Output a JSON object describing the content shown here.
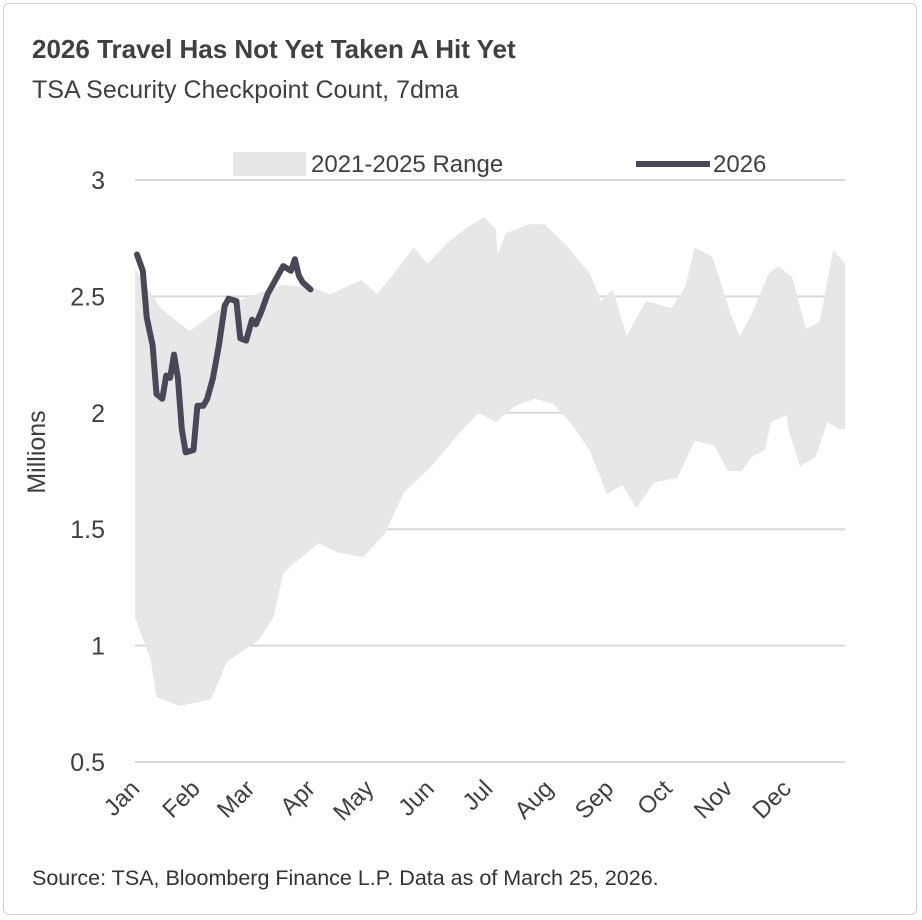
{
  "chart_data": {
    "type": "area",
    "title": "2026 Travel Has Not Yet Taken A Hit Yet",
    "subtitle": "TSA Security Checkpoint Count, 7dma",
    "ylabel": "Millions",
    "xlabel": "",
    "ylim": [
      0.5,
      3
    ],
    "yticks": [
      "0.5",
      "1",
      "1.5",
      "2",
      "2.5",
      "3"
    ],
    "ytick_values": [
      0.5,
      1,
      1.5,
      2,
      2.5,
      3
    ],
    "xticks": [
      "Jan",
      "Feb",
      "Mar",
      "Apr",
      "May",
      "Jun",
      "Jul",
      "Aug",
      "Sep",
      "Oct",
      "Nov",
      "Dec"
    ],
    "grid": "horizontal",
    "legend_position": "top",
    "colors": {
      "range": "#e7e7e7",
      "line": "#4a4759",
      "grid": "#d9d9d9"
    },
    "series": [
      {
        "name": "2021-2025 Range",
        "kind": "band",
        "upper": [
          [
            "01-01",
            2.62
          ],
          [
            "01-14",
            2.45
          ],
          [
            "01-29",
            2.35
          ],
          [
            "02-14",
            2.45
          ],
          [
            "03-01",
            2.5
          ],
          [
            "03-17",
            2.55
          ],
          [
            "04-01",
            2.54
          ],
          [
            "04-11",
            2.51
          ],
          [
            "04-27",
            2.57
          ],
          [
            "05-05",
            2.51
          ],
          [
            "05-12",
            2.58
          ],
          [
            "05-24",
            2.71
          ],
          [
            "05-31",
            2.64
          ],
          [
            "06-10",
            2.73
          ],
          [
            "06-21",
            2.8
          ],
          [
            "06-29",
            2.84
          ],
          [
            "07-05",
            2.79
          ],
          [
            "07-06",
            2.68
          ],
          [
            "07-10",
            2.77
          ],
          [
            "07-22",
            2.81
          ],
          [
            "07-30",
            2.81
          ],
          [
            "08-10",
            2.72
          ],
          [
            "08-22",
            2.6
          ],
          [
            "08-28",
            2.48
          ],
          [
            "09-03",
            2.53
          ],
          [
            "09-10",
            2.33
          ],
          [
            "09-20",
            2.48
          ],
          [
            "10-03",
            2.45
          ],
          [
            "10-10",
            2.54
          ],
          [
            "10-15",
            2.71
          ],
          [
            "10-24",
            2.67
          ],
          [
            "11-03",
            2.41
          ],
          [
            "11-07",
            2.33
          ],
          [
            "11-13",
            2.42
          ],
          [
            "11-22",
            2.6
          ],
          [
            "11-27",
            2.63
          ],
          [
            "12-04",
            2.58
          ],
          [
            "12-11",
            2.36
          ],
          [
            "12-18",
            2.39
          ],
          [
            "12-25",
            2.7
          ],
          [
            "12-31",
            2.64
          ]
        ],
        "lower": [
          [
            "01-01",
            1.12
          ],
          [
            "01-09",
            0.94
          ],
          [
            "01-12",
            0.78
          ],
          [
            "01-24",
            0.74
          ],
          [
            "02-09",
            0.77
          ],
          [
            "02-17",
            0.93
          ],
          [
            "03-05",
            1.02
          ],
          [
            "03-13",
            1.12
          ],
          [
            "03-18",
            1.31
          ],
          [
            "03-23",
            1.35
          ],
          [
            "04-05",
            1.44
          ],
          [
            "04-15",
            1.4
          ],
          [
            "04-28",
            1.38
          ],
          [
            "05-09",
            1.48
          ],
          [
            "05-19",
            1.66
          ],
          [
            "06-02",
            1.77
          ],
          [
            "06-16",
            1.91
          ],
          [
            "06-26",
            2.0
          ],
          [
            "07-05",
            1.96
          ],
          [
            "07-15",
            2.03
          ],
          [
            "07-25",
            2.06
          ],
          [
            "08-03",
            2.04
          ],
          [
            "08-12",
            1.96
          ],
          [
            "08-22",
            1.84
          ],
          [
            "08-31",
            1.65
          ],
          [
            "09-08",
            1.69
          ],
          [
            "09-15",
            1.59
          ],
          [
            "09-24",
            1.7
          ],
          [
            "10-06",
            1.72
          ],
          [
            "10-15",
            1.88
          ],
          [
            "10-25",
            1.86
          ],
          [
            "11-01",
            1.75
          ],
          [
            "11-08",
            1.75
          ],
          [
            "11-13",
            1.81
          ],
          [
            "11-20",
            1.84
          ],
          [
            "11-23",
            1.96
          ],
          [
            "12-01",
            1.99
          ],
          [
            "12-02",
            1.93
          ],
          [
            "12-08",
            1.77
          ],
          [
            "12-16",
            1.81
          ],
          [
            "12-22",
            1.96
          ],
          [
            "12-28",
            1.93
          ],
          [
            "12-31",
            1.93
          ]
        ]
      },
      {
        "name": "2026",
        "kind": "line",
        "points": [
          [
            "2026-01-02",
            2.68
          ],
          [
            "2026-01-05",
            2.61
          ],
          [
            "2026-01-07",
            2.41
          ],
          [
            "2026-01-10",
            2.29
          ],
          [
            "2026-01-12",
            2.08
          ],
          [
            "2026-01-15",
            2.06
          ],
          [
            "2026-01-17",
            2.16
          ],
          [
            "2026-01-19",
            2.15
          ],
          [
            "2026-01-21",
            2.25
          ],
          [
            "2026-01-23",
            2.15
          ],
          [
            "2026-01-25",
            1.93
          ],
          [
            "2026-01-27",
            1.83
          ],
          [
            "2026-01-31",
            1.84
          ],
          [
            "2026-02-02",
            2.03
          ],
          [
            "2026-02-05",
            2.03
          ],
          [
            "2026-02-07",
            2.06
          ],
          [
            "2026-02-10",
            2.15
          ],
          [
            "2026-02-13",
            2.29
          ],
          [
            "2026-02-16",
            2.46
          ],
          [
            "2026-02-18",
            2.49
          ],
          [
            "2026-02-22",
            2.48
          ],
          [
            "2026-02-24",
            2.32
          ],
          [
            "2026-02-27",
            2.31
          ],
          [
            "2026-03-02",
            2.4
          ],
          [
            "2026-03-04",
            2.38
          ],
          [
            "2026-03-07",
            2.44
          ],
          [
            "2026-03-10",
            2.51
          ],
          [
            "2026-03-14",
            2.57
          ],
          [
            "2026-03-18",
            2.63
          ],
          [
            "2026-03-22",
            2.61
          ],
          [
            "2026-03-24",
            2.66
          ],
          [
            "2026-03-26",
            2.59
          ],
          [
            "2026-03-28",
            2.56
          ],
          [
            "2026-04-01",
            2.53
          ]
        ]
      }
    ],
    "source": "Source: TSA, Bloomberg Finance L.P. Data as of March 25, 2026."
  }
}
